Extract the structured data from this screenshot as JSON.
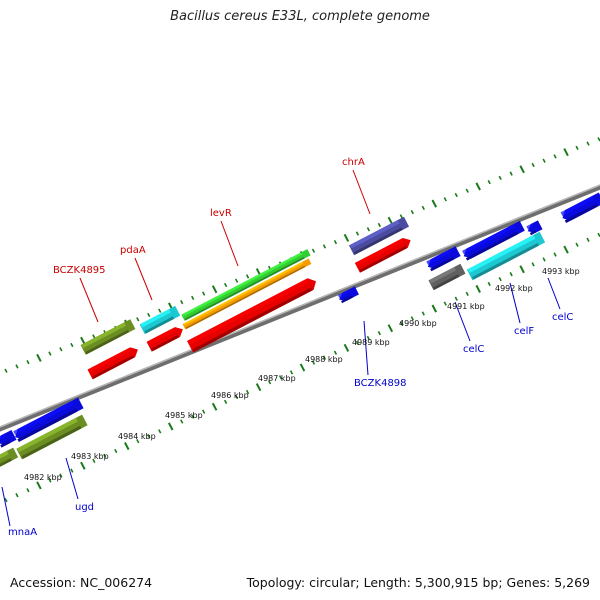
{
  "title": "Bacillus cereus E33L, complete genome",
  "footer": {
    "accession": "Accession: NC_006274",
    "summary": "Topology: circular; Length: 5,300,915 bp; Genes: 5,269"
  },
  "colors": {
    "backbone": "#888888",
    "tick": "#1a7a1a",
    "label_forward": "#cc0000",
    "label_reverse": "#0000cc"
  },
  "scale_labels": [
    "4982 kbp",
    "4983 kbp",
    "4984 kbp",
    "4985 kbp",
    "4986 kbp",
    "4987 kbp",
    "4988 kbp",
    "4989 kbp",
    "4990 kbp",
    "4991 kbp",
    "4992 kbp",
    "4993 kbp"
  ],
  "gene_labels": [
    {
      "text": "BCZK4895",
      "strand": "forward"
    },
    {
      "text": "pdaA",
      "strand": "forward"
    },
    {
      "text": "levR",
      "strand": "forward"
    },
    {
      "text": "chrA",
      "strand": "forward"
    },
    {
      "text": "mnaA",
      "strand": "reverse"
    },
    {
      "text": "ugd",
      "strand": "reverse"
    },
    {
      "text": "BCZK4898",
      "strand": "reverse"
    },
    {
      "text": "celC",
      "strand": "reverse"
    },
    {
      "text": "celF",
      "strand": "reverse"
    },
    {
      "text": "celC",
      "strand": "reverse"
    }
  ]
}
